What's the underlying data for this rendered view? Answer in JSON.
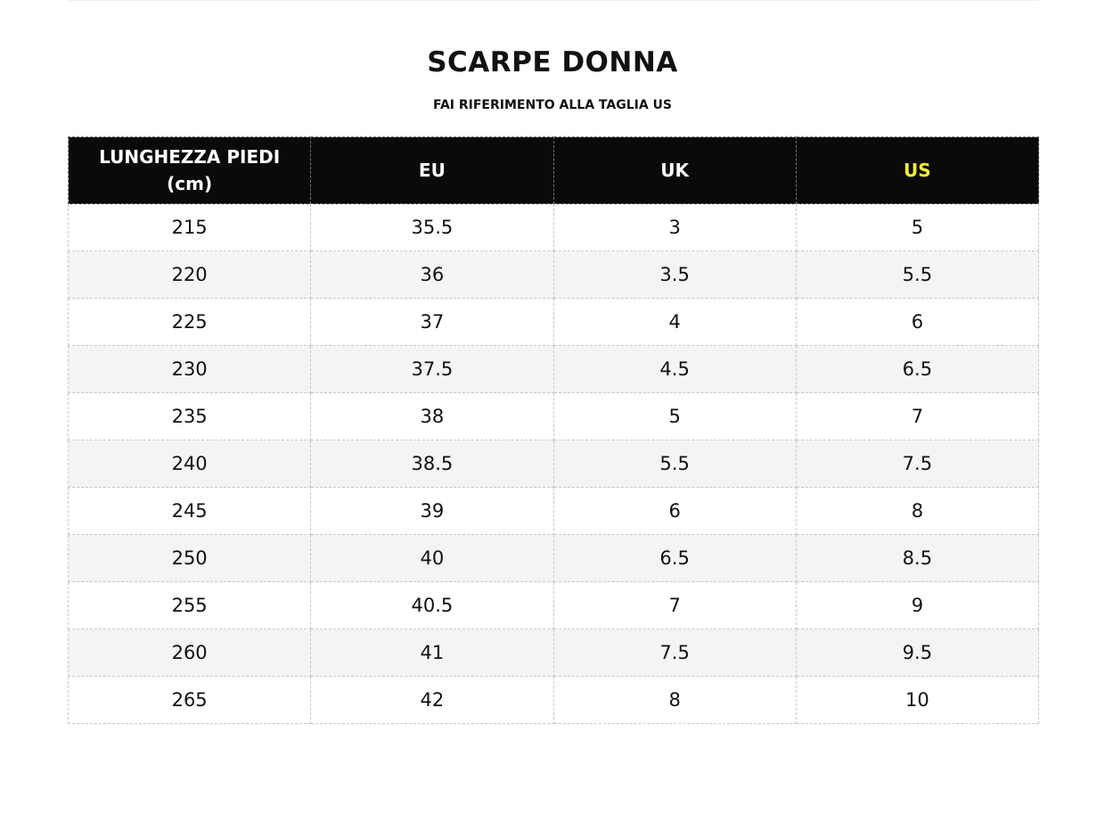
{
  "header": {
    "title": "SCARPE DONNA",
    "subtitle": "FAI RIFERIMENTO ALLA TAGLIA US"
  },
  "table": {
    "columns": [
      "LUNGHEZZA PIEDI (cm)",
      "EU",
      "UK",
      "US"
    ],
    "rows": [
      [
        215,
        35.5,
        3,
        5
      ],
      [
        220,
        36,
        3.5,
        5.5
      ],
      [
        225,
        37,
        4,
        6
      ],
      [
        230,
        37.5,
        4.5,
        6.5
      ],
      [
        235,
        38,
        5,
        7
      ],
      [
        240,
        38.5,
        5.5,
        7.5
      ],
      [
        245,
        39,
        6,
        8
      ],
      [
        250,
        40,
        6.5,
        8.5
      ],
      [
        255,
        40.5,
        7,
        9
      ],
      [
        260,
        41,
        7.5,
        9.5
      ],
      [
        265,
        42,
        8,
        10
      ]
    ]
  }
}
